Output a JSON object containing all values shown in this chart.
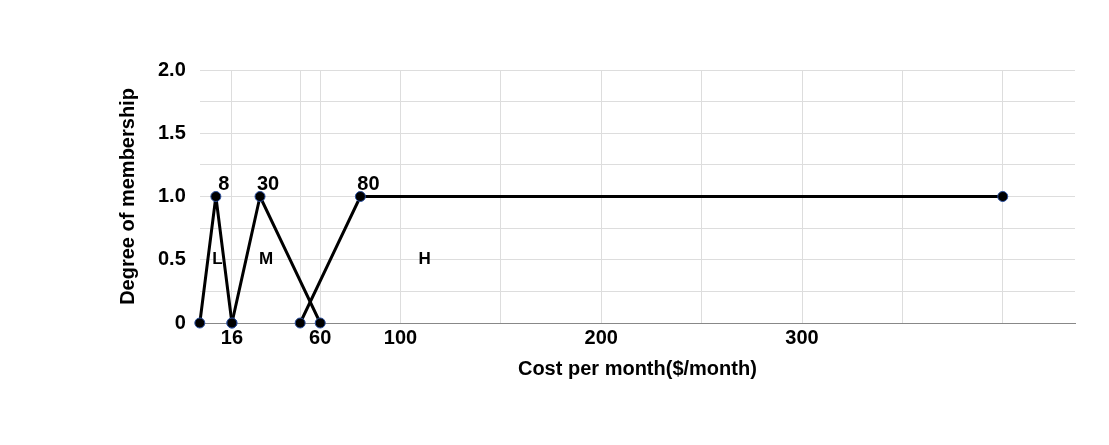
{
  "chart_data": {
    "type": "line",
    "xlabel": "Cost per month($/month)",
    "ylabel": "Degree of membership",
    "xlim": [
      0,
      436
    ],
    "xticks": [
      16,
      {
        "value": 50,
        "label": null
      },
      60,
      100,
      {
        "value": 150,
        "label": null
      },
      200,
      {
        "value": 250,
        "label": null
      },
      300,
      {
        "value": 350,
        "label": null
      },
      {
        "value": 400,
        "label": null
      }
    ],
    "ylim": [
      0,
      2
    ],
    "yticks": [
      0,
      {
        "value": 0.25,
        "label": null
      },
      {
        "value": 0.5,
        "label": "0.5"
      },
      {
        "value": 0.75,
        "label": null
      },
      {
        "value": 1,
        "label": "1.0"
      },
      {
        "value": 1.25,
        "label": null
      },
      1.5,
      {
        "value": 1.75,
        "label": null
      },
      {
        "value": 2,
        "label": "2.0"
      }
    ],
    "series": [
      {
        "color": "#000000",
        "x": [
          0,
          8,
          16
        ],
        "values": [
          0,
          1,
          0
        ]
      },
      {
        "color": "#000000",
        "x": [
          16,
          30,
          60
        ],
        "values": [
          0,
          1,
          0
        ]
      },
      {
        "color": "#000000",
        "x": [
          50,
          80,
          400
        ],
        "values": [
          0,
          1,
          1
        ]
      }
    ],
    "annotations": [
      {
        "text": "8",
        "x": 8,
        "y": 1
      },
      {
        "text": "30",
        "x": 30,
        "y": 1
      },
      {
        "text": "80",
        "x": 80,
        "y": 1
      },
      "L",
      "M",
      "H"
    ],
    "grid": true,
    "legend": false,
    "marker": "circle",
    "line_style": "solid"
  }
}
